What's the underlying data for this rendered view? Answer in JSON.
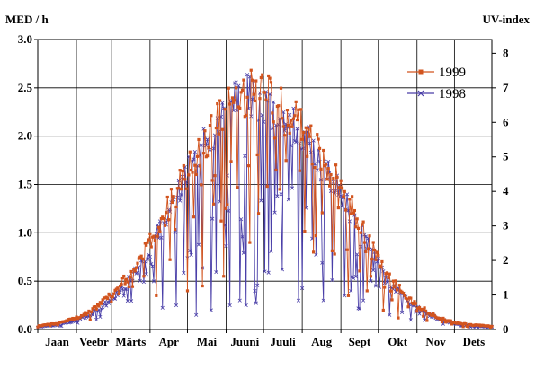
{
  "chart_data": {
    "type": "line",
    "title": "",
    "ylabel_left": "MED / h",
    "ylabel_right": "UV-index",
    "ylim": [
      0,
      3.0
    ],
    "y_ticks": [
      "0.0",
      "0.5",
      "1.0",
      "1.5",
      "2.0",
      "2.5",
      "3.0"
    ],
    "y2lim": [
      0,
      8.4
    ],
    "y2_ticks": [
      "0",
      "1",
      "2",
      "3",
      "4",
      "5",
      "6",
      "7",
      "8"
    ],
    "months": [
      "Jaan",
      "Veebr",
      "Märts",
      "Apr",
      "Mai",
      "Juuni",
      "Juuli",
      "Aug",
      "Sept",
      "Okt",
      "Nov",
      "Dets"
    ],
    "grid": true,
    "legend_position": "top-right",
    "x_unit": "day of year",
    "xlim": [
      1,
      365
    ],
    "series": [
      {
        "name": "1999",
        "color": "#d2541e",
        "marker": "square",
        "envelope": [
          [
            1,
            0.04
          ],
          [
            15,
            0.07
          ],
          [
            31,
            0.12
          ],
          [
            45,
            0.22
          ],
          [
            59,
            0.38
          ],
          [
            75,
            0.62
          ],
          [
            90,
            0.95
          ],
          [
            105,
            1.35
          ],
          [
            120,
            1.75
          ],
          [
            135,
            2.12
          ],
          [
            150,
            2.42
          ],
          [
            160,
            2.55
          ],
          [
            172,
            2.65
          ],
          [
            185,
            2.62
          ],
          [
            195,
            2.5
          ],
          [
            210,
            2.3
          ],
          [
            225,
            2.0
          ],
          [
            243,
            1.62
          ],
          [
            258,
            1.22
          ],
          [
            273,
            0.82
          ],
          [
            288,
            0.5
          ],
          [
            304,
            0.28
          ],
          [
            320,
            0.15
          ],
          [
            334,
            0.08
          ],
          [
            350,
            0.05
          ],
          [
            365,
            0.04
          ]
        ],
        "dips": [
          [
            96,
            0.35
          ],
          [
            121,
            0.4
          ],
          [
            133,
            0.45
          ],
          [
            150,
            0.55
          ],
          [
            171,
            0.9
          ],
          [
            178,
            1.2
          ],
          [
            195,
            1.45
          ],
          [
            222,
            0.8
          ],
          [
            250,
            0.35
          ],
          [
            265,
            0.4
          ],
          [
            278,
            0.2
          ],
          [
            290,
            0.12
          ]
        ]
      },
      {
        "name": "1998",
        "color": "#4a3fa8",
        "marker": "x",
        "envelope": [
          [
            1,
            0.03
          ],
          [
            15,
            0.05
          ],
          [
            31,
            0.1
          ],
          [
            45,
            0.18
          ],
          [
            59,
            0.33
          ],
          [
            75,
            0.55
          ],
          [
            90,
            0.88
          ],
          [
            105,
            1.28
          ],
          [
            120,
            1.7
          ],
          [
            135,
            2.1
          ],
          [
            150,
            2.4
          ],
          [
            160,
            2.55
          ],
          [
            172,
            2.68
          ],
          [
            185,
            2.55
          ],
          [
            195,
            2.42
          ],
          [
            210,
            2.25
          ],
          [
            225,
            1.95
          ],
          [
            243,
            1.55
          ],
          [
            258,
            1.15
          ],
          [
            273,
            0.75
          ],
          [
            288,
            0.45
          ],
          [
            304,
            0.25
          ],
          [
            320,
            0.13
          ],
          [
            334,
            0.07
          ],
          [
            350,
            0.04
          ],
          [
            365,
            0.03
          ]
        ],
        "dips": [
          [
            112,
            0.25
          ],
          [
            128,
            0.15
          ],
          [
            140,
            0.2
          ],
          [
            155,
            0.25
          ],
          [
            163,
            0.3
          ],
          [
            168,
            0.25
          ],
          [
            175,
            0.4
          ],
          [
            183,
            0.6
          ],
          [
            197,
            0.62
          ],
          [
            210,
            0.3
          ],
          [
            230,
            0.3
          ],
          [
            247,
            0.35
          ],
          [
            262,
            0.3
          ],
          [
            283,
            0.15
          ],
          [
            300,
            0.1
          ]
        ]
      }
    ]
  }
}
